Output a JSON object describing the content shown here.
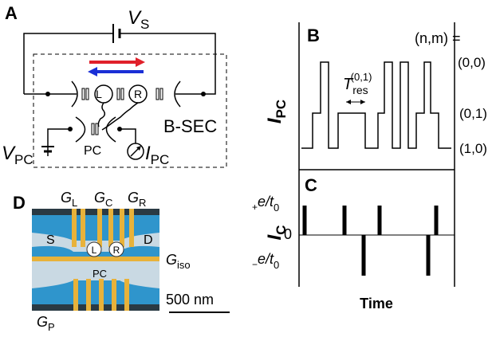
{
  "panel_a": {
    "label": "A",
    "source_voltage": {
      "main": "V",
      "sub": "S"
    },
    "dots": [
      "L",
      "R"
    ],
    "point_contact": "PC",
    "device": "B-SEC",
    "pc_voltage": {
      "main": "V",
      "sub": "PC"
    },
    "pc_current": {
      "main": "I",
      "sub": "PC"
    }
  },
  "panel_b": {
    "label": "B",
    "y_label": {
      "main": "I",
      "sub": "PC"
    },
    "state_header": "(n,m) =",
    "states": [
      "(0,0)",
      "(0,1)",
      "(1,0)"
    ],
    "residence": {
      "main": "T",
      "sub": "res",
      "sup": "(0,1)"
    }
  },
  "panel_c": {
    "label": "C",
    "y_label": {
      "main": "I",
      "sub": "C"
    },
    "plus_tick": {
      "sign": "+",
      "main": "e/t",
      "sub": "0"
    },
    "zero_tick": "0",
    "minus_tick": {
      "sign": "−",
      "main": "e/t",
      "sub": "0"
    },
    "x_label": "Time"
  },
  "panel_d": {
    "label": "D",
    "gates": [
      {
        "main": "G",
        "sub": "L"
      },
      {
        "main": "G",
        "sub": "C"
      },
      {
        "main": "G",
        "sub": "R"
      }
    ],
    "source": "S",
    "drain": "D",
    "dots": [
      "L",
      "R"
    ],
    "point_contact": "PC",
    "iso_gate": {
      "main": "G",
      "sub": "iso"
    },
    "scale": "500 nm",
    "pc_gate": {
      "main": "G",
      "sub": "P"
    }
  }
}
